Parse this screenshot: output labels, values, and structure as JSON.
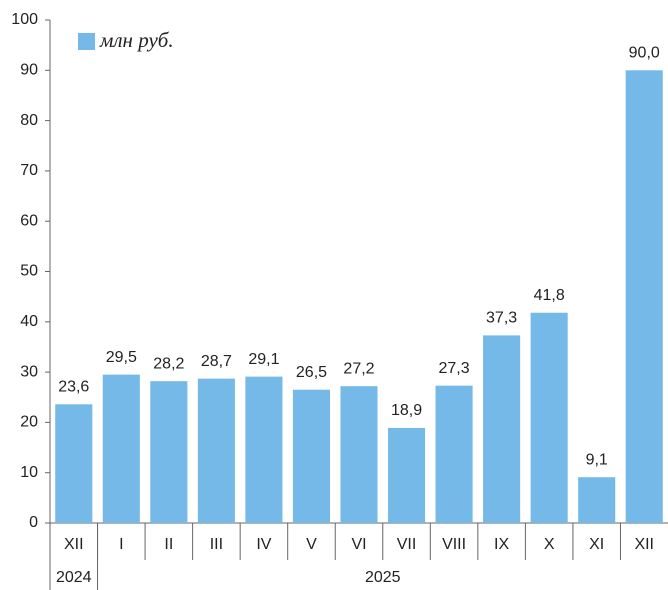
{
  "chart_data": {
    "type": "bar",
    "categories": [
      "XII",
      "I",
      "II",
      "III",
      "IV",
      "V",
      "VI",
      "VII",
      "VIII",
      "IX",
      "X",
      "XI",
      "XII"
    ],
    "x_groups": [
      {
        "label": "2024",
        "count": 1
      },
      {
        "label": "2025",
        "count": 12
      }
    ],
    "series": [
      {
        "name": "млн руб.",
        "color": "#74b9e8",
        "values": [
          23.6,
          29.5,
          28.2,
          28.7,
          29.1,
          26.5,
          27.2,
          18.9,
          27.3,
          37.3,
          41.8,
          9.1,
          90.0
        ],
        "value_labels": [
          "23,6",
          "29,5",
          "28,2",
          "28,7",
          "29,1",
          "26,5",
          "27,2",
          "18,9",
          "27,3",
          "37,3",
          "41,8",
          "9,1",
          "90,0"
        ]
      }
    ],
    "ylim": [
      0,
      100
    ],
    "yticks": [
      0,
      10,
      20,
      30,
      40,
      50,
      60,
      70,
      80,
      90,
      100
    ],
    "legend": "top-left"
  }
}
